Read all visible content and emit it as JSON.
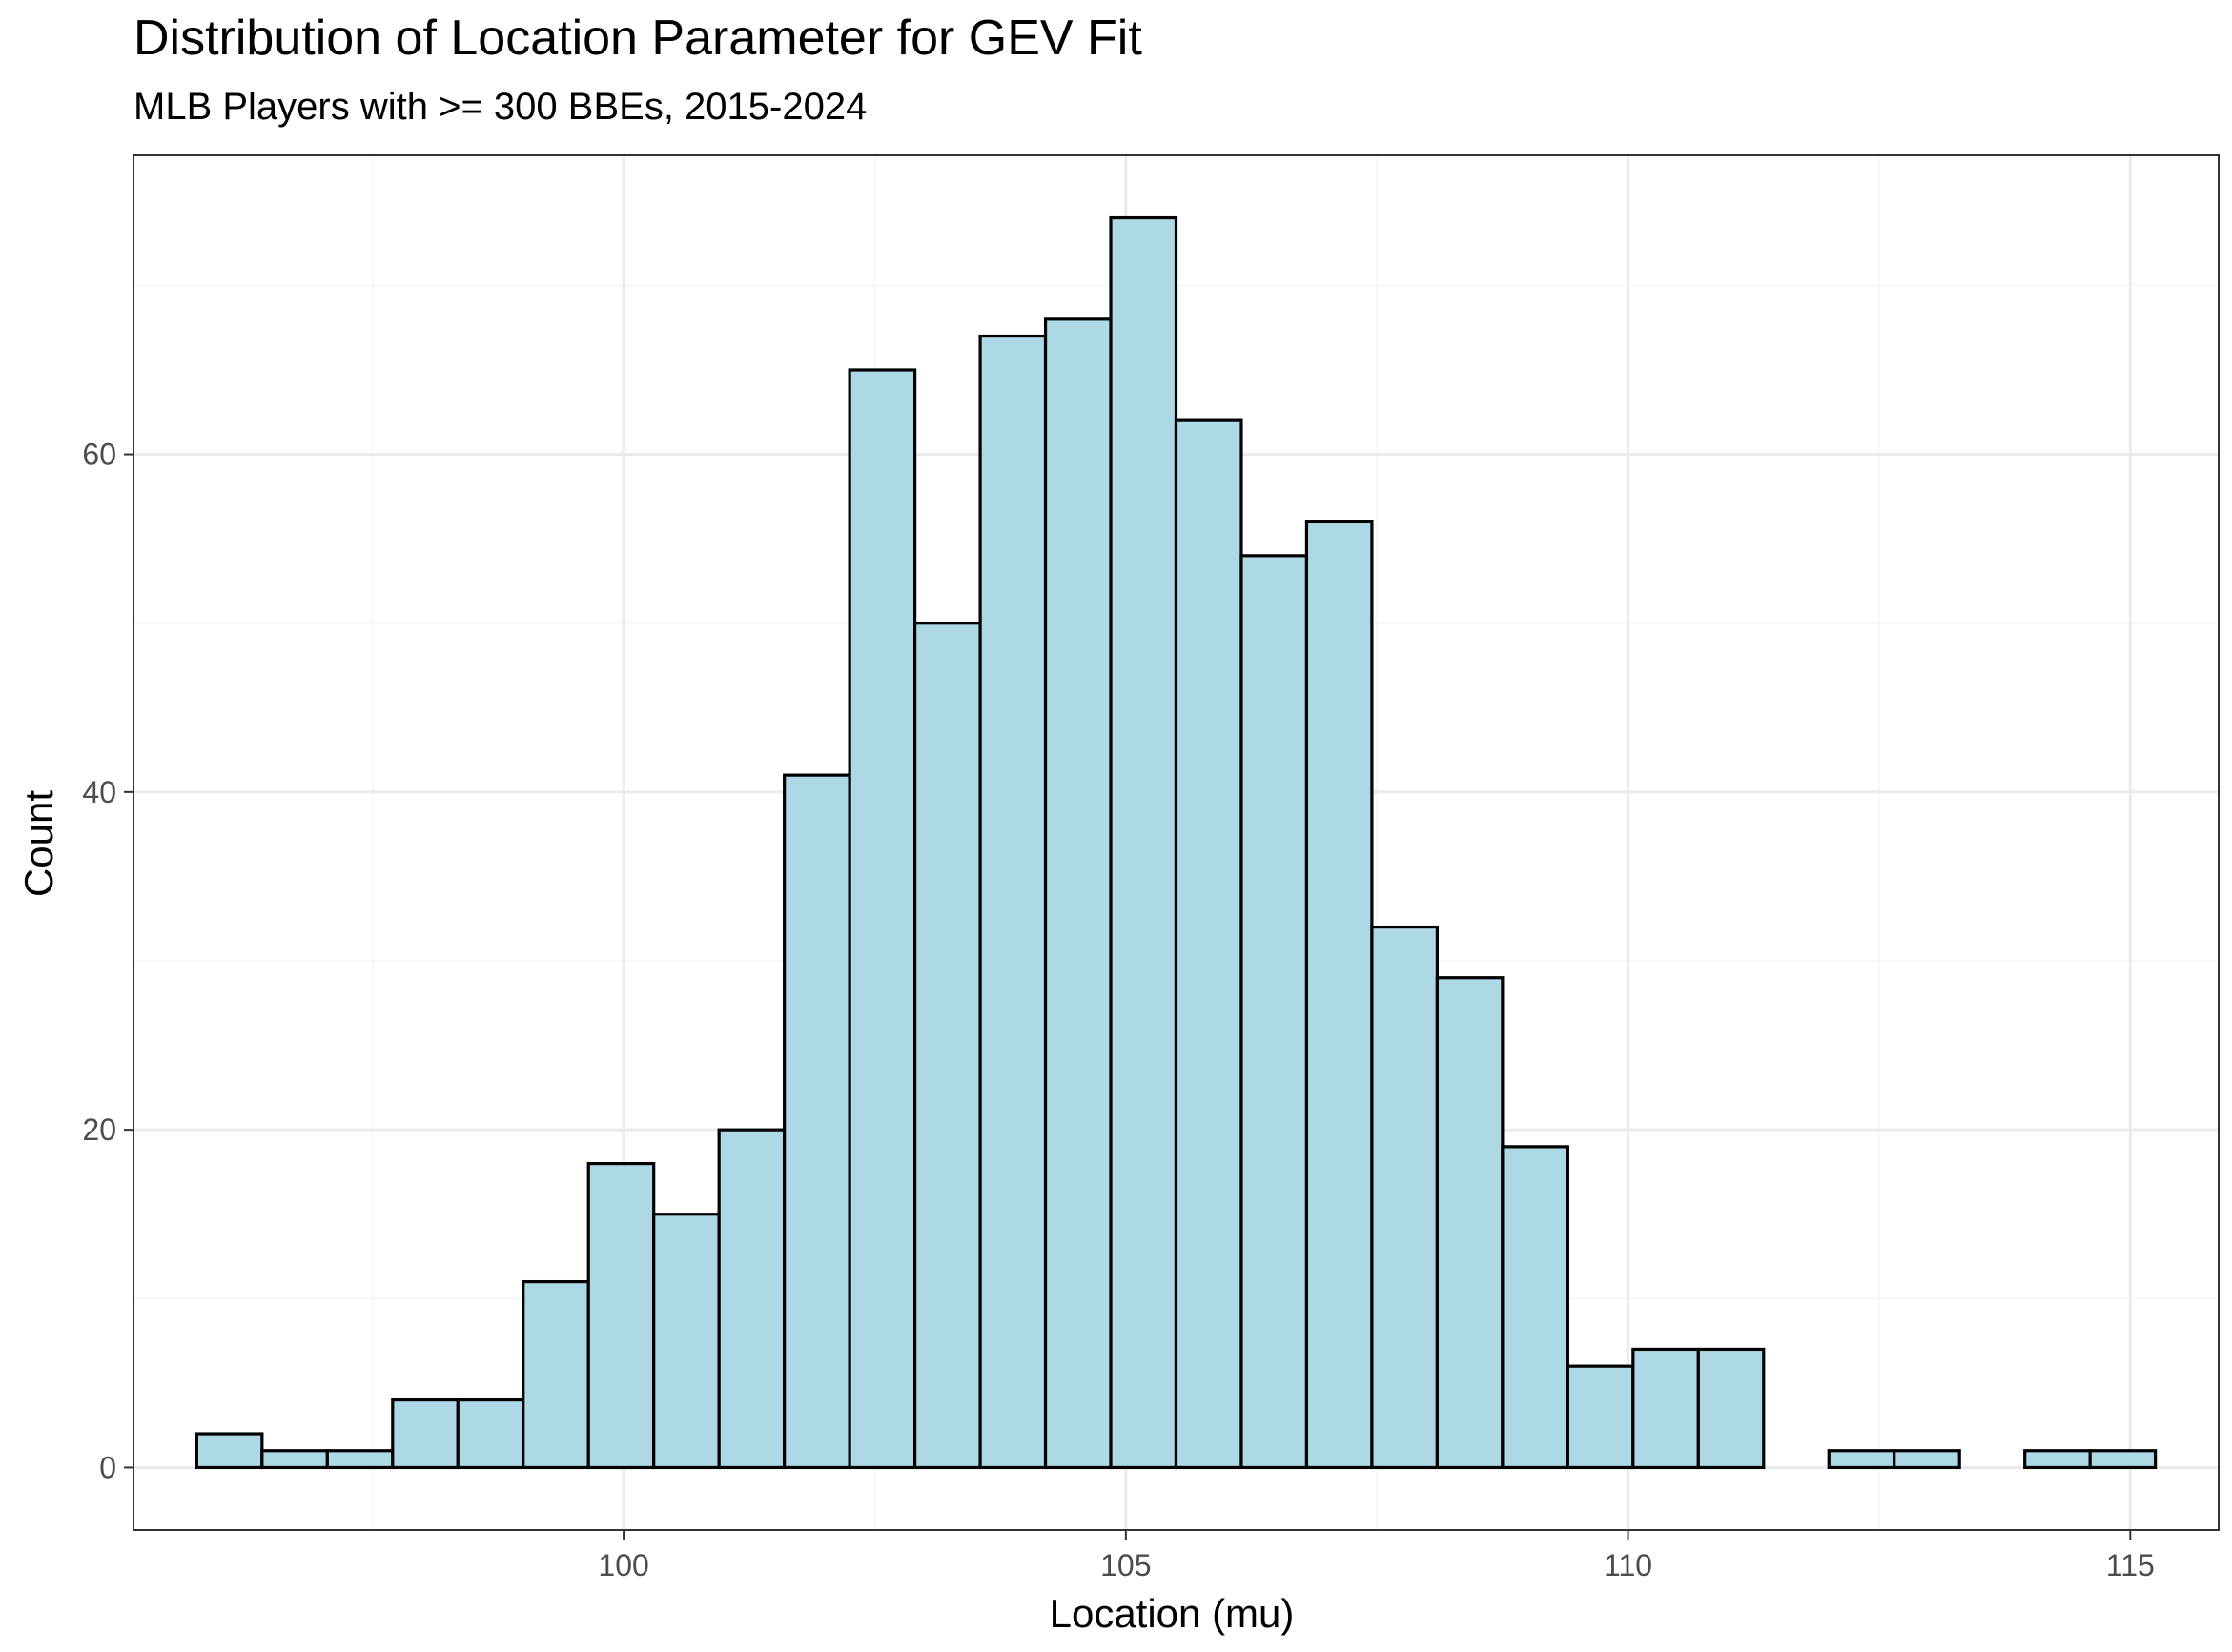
{
  "chart_data": {
    "type": "bar",
    "title": "Distribution of Location Parameter for GEV Fit",
    "subtitle": "MLB Players with >= 300 BBEs, 2015-2024",
    "xlabel": "Location (mu)",
    "ylabel": "Count",
    "bin_width": 0.65,
    "bins": [
      {
        "x0": 95.75,
        "x1": 96.4,
        "count": 2
      },
      {
        "x0": 96.4,
        "x1": 97.05,
        "count": 1
      },
      {
        "x0": 97.05,
        "x1": 97.7,
        "count": 1
      },
      {
        "x0": 97.7,
        "x1": 98.35,
        "count": 4
      },
      {
        "x0": 98.35,
        "x1": 99.0,
        "count": 4
      },
      {
        "x0": 99.0,
        "x1": 99.65,
        "count": 11
      },
      {
        "x0": 99.65,
        "x1": 100.3,
        "count": 18
      },
      {
        "x0": 100.3,
        "x1": 100.95,
        "count": 15
      },
      {
        "x0": 100.95,
        "x1": 101.6,
        "count": 20
      },
      {
        "x0": 101.6,
        "x1": 102.25,
        "count": 41
      },
      {
        "x0": 102.25,
        "x1": 102.9,
        "count": 65
      },
      {
        "x0": 102.9,
        "x1": 103.55,
        "count": 50
      },
      {
        "x0": 103.55,
        "x1": 104.2,
        "count": 67
      },
      {
        "x0": 104.2,
        "x1": 104.85,
        "count": 68
      },
      {
        "x0": 104.85,
        "x1": 105.5,
        "count": 74
      },
      {
        "x0": 105.5,
        "x1": 106.15,
        "count": 62
      },
      {
        "x0": 106.15,
        "x1": 106.8,
        "count": 54
      },
      {
        "x0": 106.8,
        "x1": 107.45,
        "count": 56
      },
      {
        "x0": 107.45,
        "x1": 108.1,
        "count": 32
      },
      {
        "x0": 108.1,
        "x1": 108.75,
        "count": 29
      },
      {
        "x0": 108.75,
        "x1": 109.4,
        "count": 19
      },
      {
        "x0": 109.4,
        "x1": 110.05,
        "count": 6
      },
      {
        "x0": 110.05,
        "x1": 110.7,
        "count": 7
      },
      {
        "x0": 110.7,
        "x1": 111.35,
        "count": 7
      },
      {
        "x0": 111.35,
        "x1": 112.0,
        "count": 0
      },
      {
        "x0": 112.0,
        "x1": 112.65,
        "count": 1
      },
      {
        "x0": 112.65,
        "x1": 113.3,
        "count": 1
      },
      {
        "x0": 113.3,
        "x1": 113.95,
        "count": 0
      },
      {
        "x0": 113.95,
        "x1": 114.6,
        "count": 1
      },
      {
        "x0": 114.6,
        "x1": 115.25,
        "count": 1
      }
    ],
    "xlim": [
      95.12,
      115.88
    ],
    "ylim": [
      -3.7,
      77.7
    ],
    "x_ticks": [
      100,
      105,
      110,
      115
    ],
    "x_minor_ticks": [
      97.5,
      102.5,
      107.5,
      112.5
    ],
    "y_ticks": [
      0,
      20,
      40,
      60
    ],
    "y_minor_ticks": [
      10,
      30,
      50,
      70
    ],
    "grid": true,
    "legend": "none",
    "colors": {
      "bar_fill": "#ADD8E6",
      "bar_stroke": "#000000",
      "grid_major": "#EBEBEB",
      "grid_minor": "#F5F5F5",
      "panel_border": "#333333",
      "tick_text": "#4D4D4D"
    }
  }
}
